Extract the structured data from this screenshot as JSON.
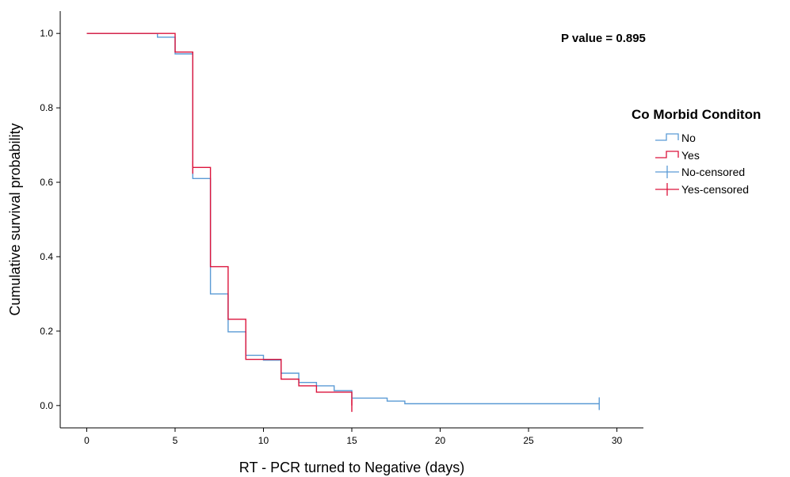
{
  "chart_data": {
    "type": "line",
    "subtype": "kaplan-meier step",
    "xlabel": "RT - PCR turned to Negative (days)",
    "ylabel": "Cumulative survival probability",
    "xlim": [
      -1.5,
      31.5
    ],
    "ylim": [
      -0.06,
      1.06
    ],
    "x_ticks": [
      0,
      5,
      10,
      15,
      20,
      25,
      30
    ],
    "y_ticks": [
      0.0,
      0.2,
      0.4,
      0.6,
      0.8,
      1.0
    ],
    "x_tick_labels": [
      "0",
      "5",
      "10",
      "15",
      "20",
      "25",
      "30"
    ],
    "y_tick_labels": [
      "0.0",
      "0.2",
      "0.4",
      "0.6",
      "0.8",
      "1.0"
    ],
    "grid": false,
    "annotation": "P value = 0.895",
    "legend": {
      "title": "Co Morbid Conditon",
      "placement": "right",
      "entries": [
        "No",
        "Yes",
        "No-censored",
        "Yes-censored"
      ]
    },
    "series": [
      {
        "name": "No",
        "color": "#5b9bd5",
        "steps": [
          [
            0,
            1.0
          ],
          [
            4,
            0.99
          ],
          [
            5,
            0.945
          ],
          [
            6,
            0.61
          ],
          [
            7,
            0.3
          ],
          [
            8,
            0.198
          ],
          [
            9,
            0.135
          ],
          [
            10,
            0.122
          ],
          [
            11,
            0.087
          ],
          [
            12,
            0.062
          ],
          [
            13,
            0.053
          ],
          [
            14,
            0.04
          ],
          [
            15,
            0.02
          ],
          [
            17,
            0.012
          ],
          [
            18,
            0.005
          ],
          [
            29,
            0.005
          ]
        ],
        "end_x": 29,
        "censored": [
          [
            29,
            0.005
          ]
        ]
      },
      {
        "name": "Yes",
        "color": "#dc143c",
        "steps": [
          [
            0,
            1.0
          ],
          [
            5,
            0.95
          ],
          [
            6,
            0.64
          ],
          [
            7,
            0.373
          ],
          [
            8,
            0.232
          ],
          [
            9,
            0.124
          ],
          [
            11,
            0.071
          ],
          [
            12,
            0.053
          ],
          [
            13,
            0.036
          ],
          [
            15,
            0.0
          ]
        ],
        "end_x": 15,
        "censored": [
          [
            6,
            0.64
          ],
          [
            15,
            0.0
          ]
        ]
      }
    ]
  }
}
